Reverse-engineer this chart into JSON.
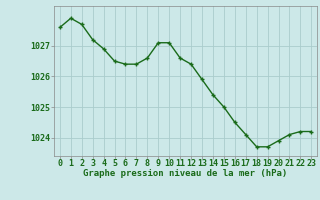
{
  "x": [
    0,
    1,
    2,
    3,
    4,
    5,
    6,
    7,
    8,
    9,
    10,
    11,
    12,
    13,
    14,
    15,
    16,
    17,
    18,
    19,
    20,
    21,
    22,
    23
  ],
  "y": [
    1027.6,
    1027.9,
    1027.7,
    1027.2,
    1026.9,
    1026.5,
    1026.4,
    1026.4,
    1026.6,
    1027.1,
    1027.1,
    1026.6,
    1026.4,
    1025.9,
    1025.4,
    1025.0,
    1024.5,
    1024.1,
    1023.7,
    1023.7,
    1023.9,
    1024.1,
    1024.2,
    1024.2
  ],
  "line_color": "#1a6b1a",
  "marker_color": "#1a6b1a",
  "bg_color": "#cce8e8",
  "grid_color": "#aacccc",
  "axis_label_color": "#1a6b1a",
  "xlabel": "Graphe pression niveau de la mer (hPa)",
  "ylim": [
    1023.4,
    1028.3
  ],
  "yticks": [
    1024,
    1025,
    1026,
    1027
  ],
  "xticks": [
    0,
    1,
    2,
    3,
    4,
    5,
    6,
    7,
    8,
    9,
    10,
    11,
    12,
    13,
    14,
    15,
    16,
    17,
    18,
    19,
    20,
    21,
    22,
    23
  ],
  "xlabel_fontsize": 6.5,
  "tick_fontsize": 6.0,
  "marker_size": 3.5,
  "line_width": 1.0
}
